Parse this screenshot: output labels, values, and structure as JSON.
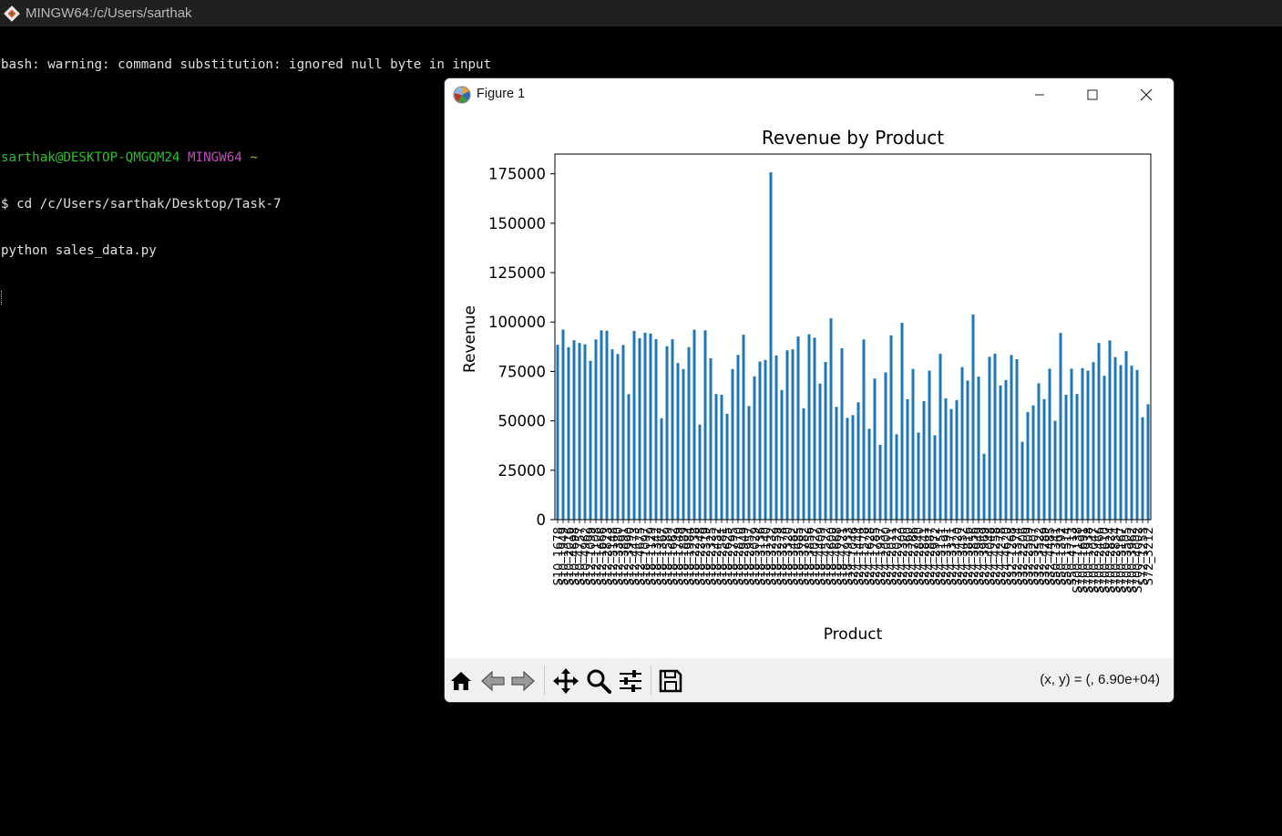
{
  "terminal": {
    "title": "MINGW64:/c/Users/sarthak",
    "lines": {
      "warning": "bash: warning: command substitution: ignored null byte in input",
      "user_host": "sarthak@DESKTOP-QMGQM24",
      "env": "MINGW64",
      "path": "~",
      "cmd1": "$ cd /c/Users/sarthak/Desktop/Task-7",
      "cmd2": "python sales_data.py"
    }
  },
  "figure_window": {
    "title": "Figure 1",
    "coord_readout": "(x, y) = (, 6.90e+04)",
    "toolbar": {
      "home": "home-icon",
      "back": "back-arrow-icon",
      "forward": "forward-arrow-icon",
      "pan": "move-icon",
      "zoom": "zoom-icon",
      "configure": "sliders-icon",
      "save": "save-icon"
    }
  },
  "chart_data": {
    "type": "bar",
    "title": "Revenue by Product",
    "xlabel": "Product",
    "ylabel": "Revenue",
    "ylim": [
      0,
      185000
    ],
    "yticks": [
      0,
      25000,
      50000,
      75000,
      100000,
      125000,
      150000,
      175000
    ],
    "ytick_labels": [
      "0",
      "25000",
      "50000",
      "75000",
      "100000",
      "125000",
      "150000",
      "175000"
    ],
    "bar_color": "#1f77b4",
    "values": [
      88500,
      96200,
      87300,
      90800,
      89400,
      88700,
      80400,
      91200,
      95800,
      95600,
      86200,
      83800,
      88400,
      63500,
      95500,
      91800,
      94600,
      94200,
      91300,
      51300,
      87800,
      91300,
      79300,
      76200,
      87300,
      96100,
      48100,
      95800,
      81700,
      63600,
      63200,
      53600,
      76200,
      83400,
      93600,
      57500,
      72500,
      80000,
      80800,
      175800,
      83100,
      65600,
      85700,
      86200,
      92700,
      56400,
      93800,
      92100,
      68800,
      79800,
      101900,
      57100,
      86700,
      51500,
      52900,
      59400,
      91200,
      46000,
      71400,
      37900,
      74500,
      93300,
      43200,
      99600,
      61000,
      76300,
      44100,
      60000,
      75400,
      42700,
      83900,
      61400,
      56000,
      60500,
      77200,
      70400,
      103800,
      72400,
      33300,
      82400,
      84000,
      67900,
      70600,
      83300,
      81200,
      39400,
      54500,
      57800,
      69000,
      61000,
      76400,
      50000,
      94500,
      63200,
      76400,
      63600,
      76700,
      75400,
      79700,
      89400,
      72800,
      90700,
      82300,
      78200,
      85300,
      77900,
      75800,
      51800,
      58400
    ],
    "tick_labels": [
      "S10_1678",
      "S10_1949",
      "S10_2016",
      "S10_4698",
      "S10_4757",
      "S10_4962",
      "S12_1099",
      "S12_1108",
      "S12_1666",
      "S12_2823",
      "S12_3148",
      "S12_3380",
      "S12_3891",
      "S12_3990",
      "S12_4473",
      "S12_4675",
      "S18_1097",
      "S18_1129",
      "S18_1342",
      "S18_1367",
      "S18_1589",
      "S18_1662",
      "S18_1749",
      "S18_1889",
      "S18_1984",
      "S18_2238",
      "S18_2248",
      "S18_2319",
      "S18_2325",
      "S18_2432",
      "S18_2581",
      "S18_2625",
      "S18_2795",
      "S18_2870",
      "S18_2949",
      "S18_2957",
      "S18_3029",
      "S18_3136",
      "S18_3140",
      "S18_3232",
      "S18_3259",
      "S18_3278",
      "S18_3320",
      "S18_3482",
      "S18_3685",
      "S18_3782",
      "S18_3856",
      "S18_4027",
      "S18_4409",
      "S18_4522",
      "S18_4600",
      "S18_4668",
      "S18_4721",
      "S18_4933",
      "S24_1046",
      "S24_1444",
      "S24_1578",
      "S24_1628",
      "S24_1785",
      "S24_1937",
      "S24_2000",
      "S24_2011",
      "S24_2022",
      "S24_2300",
      "S24_2360",
      "S24_2766",
      "S24_2840",
      "S24_2841",
      "S24_2887",
      "S24_2972",
      "S24_3151",
      "S24_3191",
      "S24_3371",
      "S24_3420",
      "S24_3432",
      "S24_3816",
      "S24_3856",
      "S24_3949",
      "S24_3969",
      "S24_4048",
      "S24_4258",
      "S24_4278",
      "S24_4620",
      "S32_1268",
      "S32_1374",
      "S32_2206",
      "S32_2509",
      "S32_3207",
      "S32_3522",
      "S32_4289",
      "S32_4485",
      "S50_1341",
      "S50_1392",
      "S50_1514",
      "S50_4713",
      "S700_1138",
      "S700_1691",
      "S700_1938",
      "S700_2047",
      "S700_2466",
      "S700_2610",
      "S700_2824",
      "S700_2834",
      "S700_3167",
      "S700_3505",
      "S700_3962",
      "S700_4002",
      "S72_1253",
      "S72_3212"
    ]
  }
}
